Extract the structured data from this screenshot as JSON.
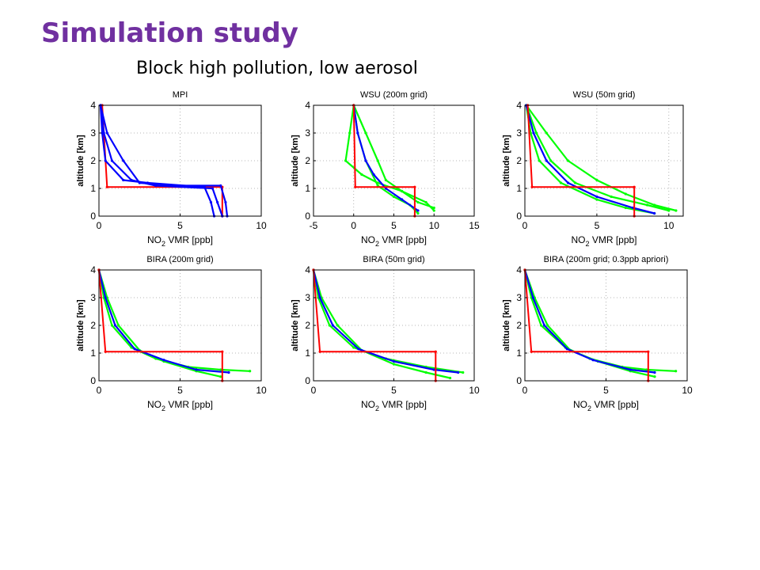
{
  "slide": {
    "title": "Simulation study",
    "subtitle": "Block high pollution, low aerosol"
  },
  "colors": {
    "true_profile": "#ff0000",
    "mpi": "#0000ff",
    "retrieval_a": "#00ff00",
    "retrieval_b": "#0000ff"
  },
  "chart_data": [
    {
      "type": "line",
      "title": "MPI",
      "xlabel": "NO2 VMR [ppb]",
      "ylabel": "altitude [km]",
      "xlim": [
        0,
        10
      ],
      "ylim": [
        0,
        4
      ],
      "xticks": [
        0,
        5,
        10
      ],
      "yticks": [
        0,
        1,
        2,
        3,
        4
      ],
      "grid": true,
      "series": [
        {
          "color": "#ff0000",
          "points": [
            [
              0.2,
              4
            ],
            [
              0.5,
              1.05
            ],
            [
              7.6,
              1.05
            ],
            [
              7.6,
              0
            ]
          ]
        },
        {
          "color": "#0000ff",
          "points": [
            [
              0.1,
              4
            ],
            [
              0.3,
              3
            ],
            [
              0.8,
              2
            ],
            [
              2,
              1.3
            ],
            [
              3.5,
              1.1
            ],
            [
              7,
              1
            ],
            [
              7.3,
              0.5
            ],
            [
              7.6,
              0
            ]
          ]
        },
        {
          "color": "#0000ff",
          "points": [
            [
              0.1,
              4
            ],
            [
              0.5,
              3
            ],
            [
              1.5,
              2
            ],
            [
              2.5,
              1.2
            ],
            [
              5,
              1.1
            ],
            [
              7.5,
              1.1
            ],
            [
              7.8,
              0.5
            ],
            [
              7.9,
              0
            ]
          ]
        },
        {
          "color": "#0000ff",
          "points": [
            [
              0.1,
              4
            ],
            [
              0.2,
              3
            ],
            [
              0.4,
              2
            ],
            [
              1.5,
              1.3
            ],
            [
              3,
              1.2
            ],
            [
              6.5,
              1.05
            ],
            [
              6.9,
              0.5
            ],
            [
              7.1,
              0
            ]
          ]
        }
      ]
    },
    {
      "type": "line",
      "title": "WSU (200m grid)",
      "xlabel": "NO2 VMR [ppb]",
      "ylabel": "altitude [km]",
      "xlim": [
        -5,
        15
      ],
      "ylim": [
        0,
        4
      ],
      "xticks": [
        -5,
        0,
        5,
        10,
        15
      ],
      "yticks": [
        0,
        1,
        2,
        3,
        4
      ],
      "grid": true,
      "series": [
        {
          "color": "#00ff00",
          "points": [
            [
              0,
              4
            ],
            [
              -0.5,
              3
            ],
            [
              -1,
              2
            ],
            [
              1,
              1.5
            ],
            [
              3,
              1.2
            ],
            [
              6,
              0.9
            ],
            [
              9,
              0.5
            ],
            [
              10,
              0.2
            ]
          ]
        },
        {
          "color": "#00ff00",
          "points": [
            [
              0,
              4
            ],
            [
              1.5,
              3
            ],
            [
              3,
              2
            ],
            [
              4,
              1.3
            ],
            [
              6,
              0.9
            ],
            [
              8,
              0.5
            ],
            [
              10,
              0.3
            ]
          ]
        },
        {
          "color": "#00ff00",
          "points": [
            [
              0,
              4
            ],
            [
              0.5,
              3
            ],
            [
              1.5,
              2
            ],
            [
              3,
              1.1
            ],
            [
              5,
              0.7
            ],
            [
              7,
              0.4
            ],
            [
              8,
              0.1
            ]
          ]
        },
        {
          "color": "#0000ff",
          "points": [
            [
              0,
              4
            ],
            [
              0.5,
              3
            ],
            [
              1.5,
              2
            ],
            [
              2.5,
              1.5
            ],
            [
              4,
              1
            ],
            [
              6,
              0.6
            ],
            [
              8,
              0.2
            ]
          ]
        },
        {
          "color": "#ff0000",
          "points": [
            [
              0,
              4
            ],
            [
              0.2,
              1.05
            ],
            [
              7.6,
              1.05
            ],
            [
              7.6,
              0
            ]
          ]
        }
      ]
    },
    {
      "type": "line",
      "title": "WSU (50m grid)",
      "xlabel": "NO2 VMR [ppb]",
      "ylabel": "altitude [km]",
      "xlim": [
        0,
        11
      ],
      "ylim": [
        0,
        4
      ],
      "xticks": [
        0,
        5,
        10
      ],
      "yticks": [
        0,
        1,
        2,
        3,
        4
      ],
      "grid": true,
      "series": [
        {
          "color": "#00ff00",
          "points": [
            [
              0.1,
              4
            ],
            [
              1.5,
              3
            ],
            [
              3,
              2
            ],
            [
              5,
              1.3
            ],
            [
              7,
              0.8
            ],
            [
              9,
              0.4
            ],
            [
              10.5,
              0.2
            ]
          ]
        },
        {
          "color": "#00ff00",
          "points": [
            [
              0.1,
              4
            ],
            [
              0.8,
              3
            ],
            [
              1.8,
              2
            ],
            [
              3.5,
              1.2
            ],
            [
              6,
              0.7
            ],
            [
              8.5,
              0.4
            ],
            [
              10,
              0.2
            ]
          ]
        },
        {
          "color": "#00ff00",
          "points": [
            [
              0.1,
              4
            ],
            [
              0.4,
              3
            ],
            [
              1,
              2
            ],
            [
              2.5,
              1.2
            ],
            [
              5,
              0.6
            ],
            [
              7,
              0.3
            ],
            [
              9,
              0.1
            ]
          ]
        },
        {
          "color": "#0000ff",
          "points": [
            [
              0.1,
              4
            ],
            [
              0.6,
              3
            ],
            [
              1.5,
              2
            ],
            [
              3,
              1.2
            ],
            [
              5,
              0.7
            ],
            [
              7.5,
              0.3
            ],
            [
              9,
              0.1
            ]
          ]
        },
        {
          "color": "#ff0000",
          "points": [
            [
              0.2,
              4
            ],
            [
              0.5,
              1.05
            ],
            [
              7.6,
              1.05
            ],
            [
              7.6,
              0
            ]
          ]
        }
      ]
    },
    {
      "type": "line",
      "title": "BIRA (200m grid)",
      "xlabel": "NO2 VMR [ppb]",
      "ylabel": "altitude [km]",
      "xlim": [
        0,
        10
      ],
      "ylim": [
        0,
        4
      ],
      "xticks": [
        0,
        5,
        10
      ],
      "yticks": [
        0,
        1,
        2,
        3,
        4
      ],
      "grid": true,
      "series": [
        {
          "color": "#00ff00",
          "points": [
            [
              0,
              4
            ],
            [
              0.3,
              3
            ],
            [
              0.8,
              2
            ],
            [
              2,
              1.2
            ],
            [
              3.5,
              0.8
            ],
            [
              5.5,
              0.5
            ],
            [
              7.5,
              0.4
            ],
            [
              9.3,
              0.35
            ]
          ]
        },
        {
          "color": "#00ff00",
          "points": [
            [
              0,
              4
            ],
            [
              0.5,
              3
            ],
            [
              1.2,
              2
            ],
            [
              2.5,
              1.1
            ],
            [
              4,
              0.7
            ],
            [
              6,
              0.35
            ],
            [
              7.5,
              0.15
            ]
          ]
        },
        {
          "color": "#0000ff",
          "points": [
            [
              0,
              4
            ],
            [
              0.4,
              3
            ],
            [
              1,
              2
            ],
            [
              2.2,
              1.15
            ],
            [
              4,
              0.75
            ],
            [
              6,
              0.4
            ],
            [
              8,
              0.3
            ]
          ]
        },
        {
          "color": "#ff0000",
          "points": [
            [
              0,
              4
            ],
            [
              0.4,
              1.05
            ],
            [
              7.6,
              1.05
            ],
            [
              7.6,
              0
            ]
          ]
        }
      ]
    },
    {
      "type": "line",
      "title": "BIRA (50m grid)",
      "xlabel": "NO2 VMR [ppb]",
      "ylabel": "altitude [km]",
      "xlim": [
        0,
        10
      ],
      "ylim": [
        0,
        4
      ],
      "xticks": [
        0,
        5,
        10
      ],
      "yticks": [
        0,
        1,
        2,
        3,
        4
      ],
      "grid": true,
      "series": [
        {
          "color": "#00ff00",
          "points": [
            [
              0,
              4
            ],
            [
              0.3,
              3
            ],
            [
              1,
              2
            ],
            [
              2.5,
              1.2
            ],
            [
              4.5,
              0.8
            ],
            [
              7,
              0.5
            ],
            [
              9.3,
              0.3
            ]
          ]
        },
        {
          "color": "#00ff00",
          "points": [
            [
              0,
              4
            ],
            [
              0.5,
              3
            ],
            [
              1.5,
              2
            ],
            [
              3,
              1.1
            ],
            [
              5,
              0.6
            ],
            [
              7,
              0.3
            ],
            [
              8.5,
              0.1
            ]
          ]
        },
        {
          "color": "#0000ff",
          "points": [
            [
              0,
              4
            ],
            [
              0.4,
              3
            ],
            [
              1.2,
              2
            ],
            [
              2.8,
              1.15
            ],
            [
              5,
              0.7
            ],
            [
              7.5,
              0.4
            ],
            [
              9,
              0.3
            ]
          ]
        },
        {
          "color": "#ff0000",
          "points": [
            [
              0,
              4
            ],
            [
              0.4,
              1.05
            ],
            [
              7.6,
              1.05
            ],
            [
              7.6,
              0
            ]
          ]
        }
      ]
    },
    {
      "type": "line",
      "title": "BIRA (200m grid; 0.3ppb apriori)",
      "xlabel": "NO2 VMR [ppb]",
      "ylabel": "altitude [km]",
      "xlim": [
        0,
        10
      ],
      "ylim": [
        0,
        4
      ],
      "xticks": [
        0,
        5,
        10
      ],
      "yticks": [
        0,
        1,
        2,
        3,
        4
      ],
      "grid": true,
      "series": [
        {
          "color": "#00ff00",
          "points": [
            [
              0,
              4
            ],
            [
              0.4,
              3
            ],
            [
              1,
              2
            ],
            [
              2.5,
              1.2
            ],
            [
              4,
              0.8
            ],
            [
              6,
              0.5
            ],
            [
              7.5,
              0.4
            ],
            [
              9.3,
              0.35
            ]
          ]
        },
        {
          "color": "#00ff00",
          "points": [
            [
              0,
              4
            ],
            [
              0.6,
              3
            ],
            [
              1.4,
              2
            ],
            [
              2.8,
              1.1
            ],
            [
              4.5,
              0.7
            ],
            [
              6.5,
              0.35
            ],
            [
              8,
              0.15
            ]
          ]
        },
        {
          "color": "#0000ff",
          "points": [
            [
              0,
              4
            ],
            [
              0.5,
              3
            ],
            [
              1.2,
              2
            ],
            [
              2.6,
              1.15
            ],
            [
              4.2,
              0.75
            ],
            [
              6.5,
              0.4
            ],
            [
              8,
              0.3
            ]
          ]
        },
        {
          "color": "#ff0000",
          "points": [
            [
              0,
              4
            ],
            [
              0.4,
              1.05
            ],
            [
              7.6,
              1.05
            ],
            [
              7.6,
              0
            ]
          ]
        }
      ]
    }
  ]
}
